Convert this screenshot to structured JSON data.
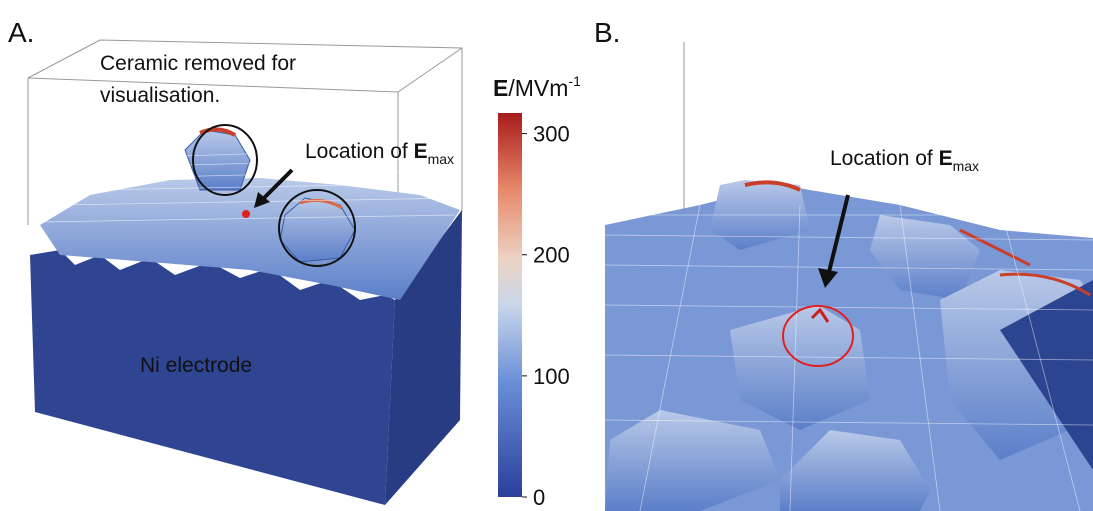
{
  "panels": [
    {
      "label": "A.",
      "caption": [
        "Ceramic removed for",
        "visualisation."
      ],
      "location": {
        "text": "Location of ",
        "symbol": "E",
        "subscript": "max"
      },
      "region": "Ni electrode"
    },
    {
      "label": "B.",
      "location": {
        "text": "Location of ",
        "symbol": "E",
        "subscript": "max"
      }
    }
  ],
  "colorbar": {
    "symbol": "E",
    "unit": "/MVm",
    "exponent": "-1",
    "lim": [
      0,
      317
    ],
    "ticks": [
      0,
      100,
      200,
      300
    ]
  }
}
